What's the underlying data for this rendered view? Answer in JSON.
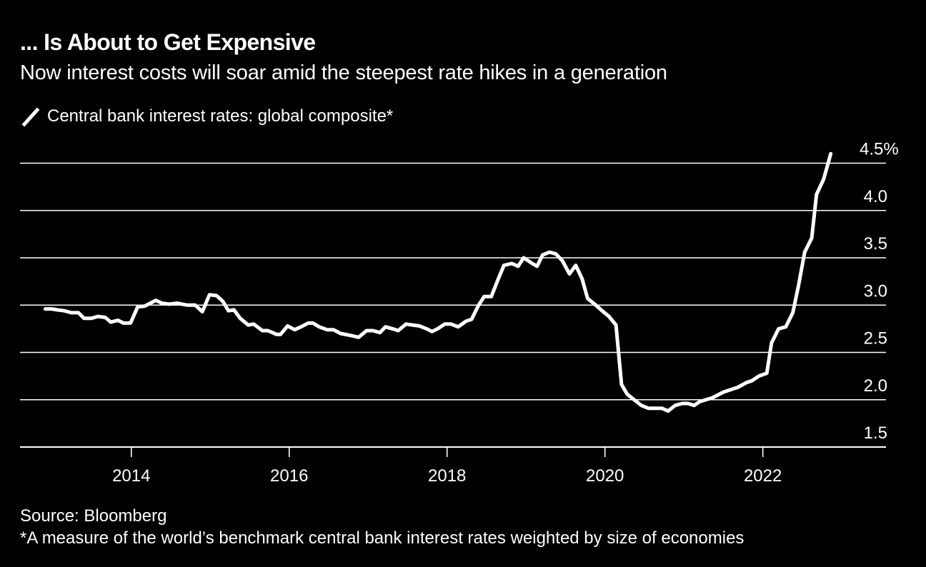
{
  "header": {
    "title": "... Is About to Get Expensive",
    "subtitle": "Now interest costs will soar amid the steepest rate hikes in a generation"
  },
  "legend": {
    "icon": "line-swatch-icon",
    "label": "Central bank interest rates: global composite*"
  },
  "footer": {
    "source": "Source: Bloomberg",
    "note": "*A measure of the world’s benchmark central bank interest rates weighted by size of economies"
  },
  "colors": {
    "background": "#000000",
    "line": "#ffffff",
    "grid": "#ffffff",
    "text": "#ffffff"
  },
  "chart_data": {
    "type": "line",
    "title": "... Is About to Get Expensive",
    "subtitle": "Now interest costs will soar amid the steepest rate hikes in a generation",
    "xlabel": "",
    "ylabel": "",
    "xlim": [
      2012.59,
      2023.56
    ],
    "ylim": [
      1.5,
      4.5
    ],
    "x_ticks": [
      2014,
      2016,
      2018,
      2020,
      2022
    ],
    "x_tick_labels": [
      "2014",
      "2016",
      "2018",
      "2020",
      "2022"
    ],
    "y_ticks": [
      1.5,
      2.0,
      2.5,
      3.0,
      3.5,
      4.0,
      4.5
    ],
    "y_tick_labels": [
      "1.5",
      "2.0",
      "2.5",
      "3.0",
      "3.5",
      "4.0",
      "4.5%"
    ],
    "y_axis_side": "right",
    "grid": true,
    "legend_position": "top-left",
    "series": [
      {
        "name": "Central bank interest rates: global composite*",
        "x": [
          2012.91,
          2012.99,
          2013.06,
          2013.15,
          2013.24,
          2013.33,
          2013.4,
          2013.49,
          2013.58,
          2013.67,
          2013.74,
          2013.83,
          2013.9,
          2013.99,
          2014.08,
          2014.17,
          2014.31,
          2014.39,
          2014.48,
          2014.58,
          2014.71,
          2014.81,
          2014.9,
          2014.99,
          2015.08,
          2015.16,
          2015.23,
          2015.3,
          2015.38,
          2015.48,
          2015.55,
          2015.66,
          2015.73,
          2015.84,
          2015.89,
          2015.98,
          2016.07,
          2016.15,
          2016.24,
          2016.3,
          2016.38,
          2016.48,
          2016.56,
          2016.65,
          2016.77,
          2016.88,
          2016.98,
          2017.06,
          2017.15,
          2017.22,
          2017.31,
          2017.38,
          2017.48,
          2017.56,
          2017.65,
          2017.74,
          2017.81,
          2017.88,
          2017.97,
          2018.05,
          2018.14,
          2018.24,
          2018.31,
          2018.4,
          2018.47,
          2018.56,
          2018.65,
          2018.72,
          2018.82,
          2018.9,
          2018.97,
          2019.06,
          2019.14,
          2019.21,
          2019.3,
          2019.38,
          2019.46,
          2019.55,
          2019.63,
          2019.71,
          2019.78,
          2019.87,
          2019.95,
          2020.05,
          2020.14,
          2020.21,
          2020.28,
          2020.37,
          2020.46,
          2020.55,
          2020.72,
          2020.8,
          2020.89,
          2020.98,
          2021.05,
          2021.13,
          2021.2,
          2021.36,
          2021.5,
          2021.68,
          2021.79,
          2021.86,
          2021.95,
          2022.05,
          2022.11,
          2022.2,
          2022.29,
          2022.38,
          2022.45,
          2022.53,
          2022.62,
          2022.68,
          2022.77,
          2022.86
        ],
        "values": [
          2.96,
          2.96,
          2.95,
          2.94,
          2.92,
          2.92,
          2.86,
          2.86,
          2.88,
          2.87,
          2.82,
          2.84,
          2.81,
          2.81,
          2.98,
          2.99,
          3.05,
          3.02,
          3.01,
          3.02,
          3.0,
          3.0,
          2.93,
          3.11,
          3.1,
          3.04,
          2.94,
          2.95,
          2.86,
          2.79,
          2.8,
          2.73,
          2.73,
          2.69,
          2.69,
          2.78,
          2.74,
          2.77,
          2.81,
          2.81,
          2.77,
          2.74,
          2.74,
          2.7,
          2.68,
          2.66,
          2.73,
          2.73,
          2.71,
          2.77,
          2.75,
          2.73,
          2.8,
          2.79,
          2.78,
          2.75,
          2.72,
          2.75,
          2.8,
          2.8,
          2.77,
          2.83,
          2.85,
          3.0,
          3.09,
          3.09,
          3.28,
          3.42,
          3.44,
          3.41,
          3.5,
          3.45,
          3.41,
          3.53,
          3.56,
          3.54,
          3.47,
          3.33,
          3.42,
          3.28,
          3.07,
          3.01,
          2.95,
          2.88,
          2.79,
          2.16,
          2.06,
          2.0,
          1.94,
          1.91,
          1.91,
          1.88,
          1.94,
          1.96,
          1.96,
          1.94,
          1.98,
          2.02,
          2.08,
          2.13,
          2.18,
          2.2,
          2.25,
          2.28,
          2.6,
          2.75,
          2.77,
          2.92,
          3.2,
          3.56,
          3.71,
          4.17,
          4.33,
          4.6
        ]
      }
    ]
  }
}
